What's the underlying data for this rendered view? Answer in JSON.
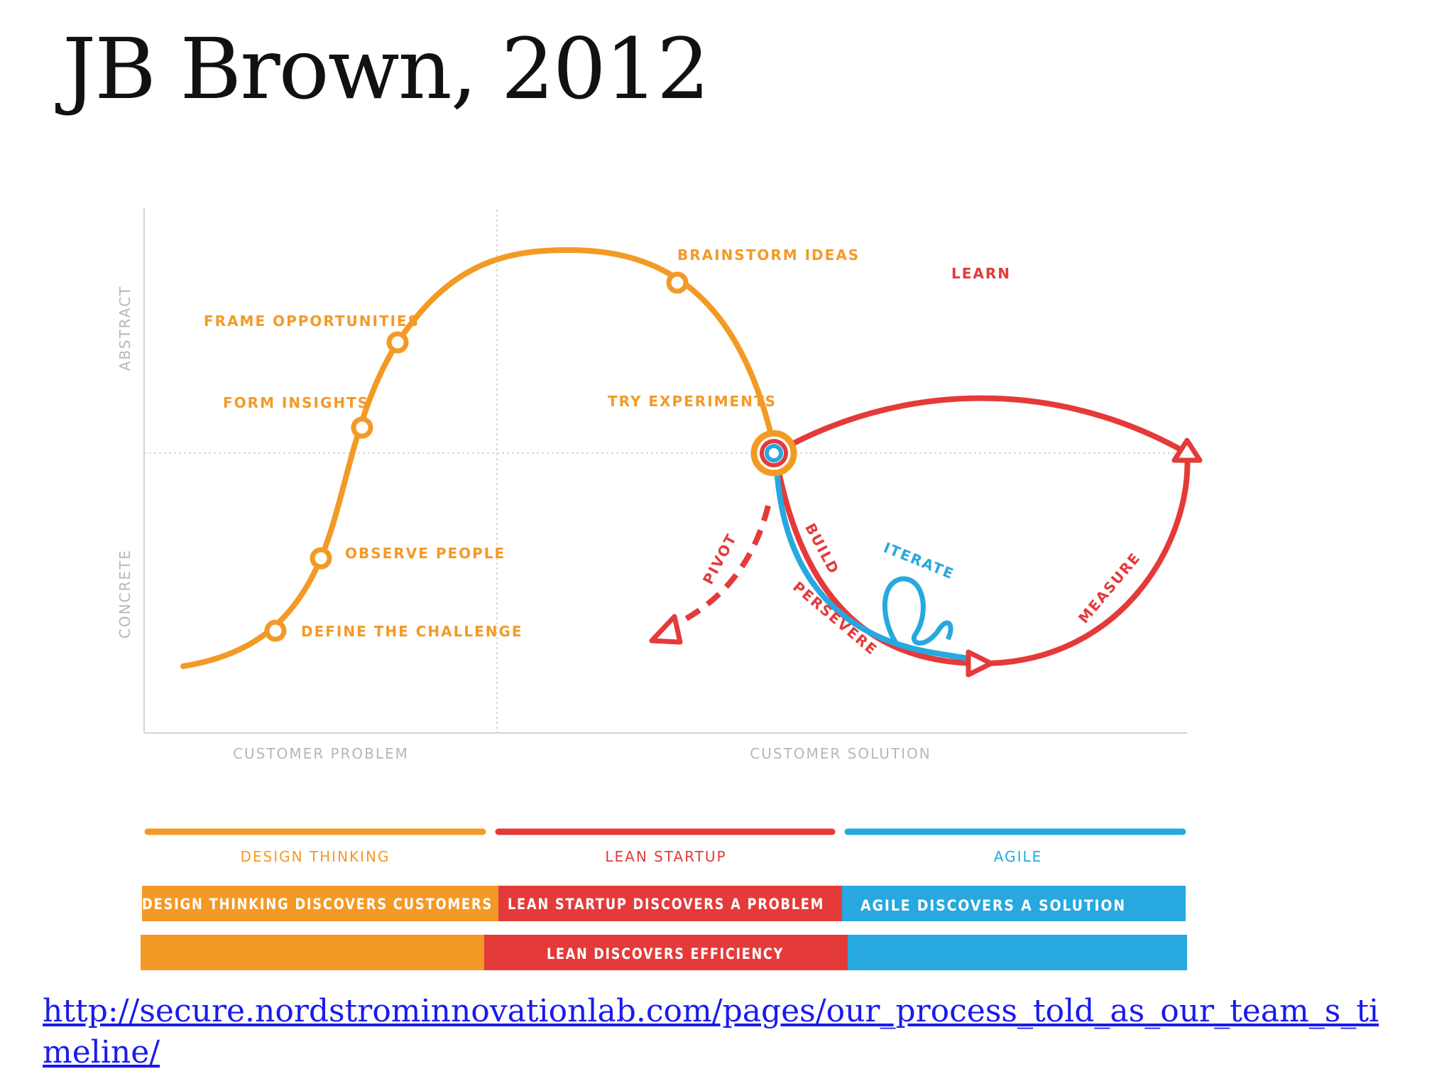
{
  "slide": {
    "title": "JB Brown, 2012",
    "link": "http://secure.nordstrominnovationlab.com/pages/our_process_told_as_our_team_s_timeline/"
  },
  "colors": {
    "design": "#f39a26",
    "lean": "#e53a3a",
    "agile": "#27a8df",
    "axis": "#cfcfcf",
    "grid_text": "#b7b7b7"
  },
  "axes": {
    "y_top": "ABSTRACT",
    "y_bottom": "CONCRETE",
    "x_left": "CUSTOMER PROBLEM",
    "x_right": "CUSTOMER SOLUTION"
  },
  "steps": {
    "define": "DEFINE THE CHALLENGE",
    "observe": "OBSERVE PEOPLE",
    "insights": "FORM INSIGHTS",
    "frame": "FRAME OPPORTUNITIES",
    "brainstorm": "BRAINSTORM IDEAS",
    "experiments": "TRY EXPERIMENTS"
  },
  "loop": {
    "learn": "LEARN",
    "measure": "MEASURE",
    "build": "BUILD",
    "persevere": "PERSEVERE",
    "iterate": "ITERATE",
    "pivot": "PIVOT"
  },
  "legend": {
    "design": "DESIGN THINKING",
    "lean": "LEAN STARTUP",
    "agile": "AGILE"
  },
  "bars": {
    "row1_design": "DESIGN THINKING DISCOVERS CUSTOMERS",
    "row1_lean": "LEAN STARTUP DISCOVERS A PROBLEM",
    "row1_agile": "AGILE DISCOVERS A SOLUTION",
    "row2_lean": "LEAN DISCOVERS EFFICIENCY"
  }
}
